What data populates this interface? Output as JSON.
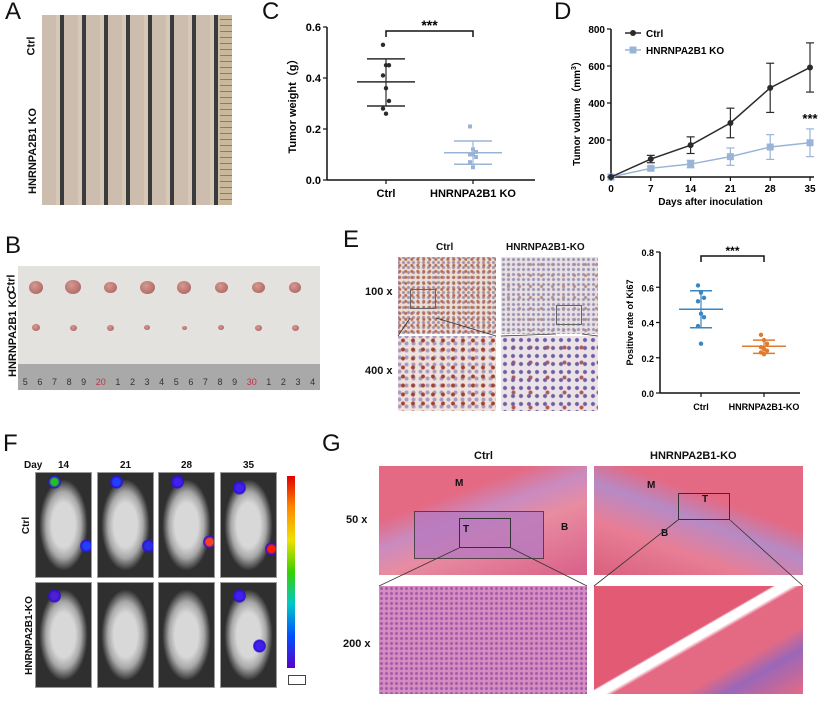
{
  "panels": {
    "A": {
      "letter": "A",
      "row_labels": [
        "Ctrl",
        "HNRNPA2B1 KO"
      ]
    },
    "B": {
      "letter": "B",
      "row_labels": [
        "Ctrl",
        "HNRNPA2B1 KO"
      ],
      "ruler_ticks": [
        "5",
        "6",
        "7",
        "8",
        "9",
        "20",
        "1",
        "2",
        "3",
        "4",
        "5",
        "6",
        "7",
        "8",
        "9",
        "30",
        "1",
        "2",
        "3",
        "4"
      ]
    },
    "C": {
      "letter": "C"
    },
    "D": {
      "letter": "D"
    },
    "E": {
      "letter": "E",
      "col_labels": [
        "Ctrl",
        "HNRNPA2B1-KO"
      ],
      "row_labels": [
        "100 x",
        "400 x"
      ]
    },
    "F": {
      "letter": "F",
      "day_label": "Day",
      "days": [
        "14",
        "21",
        "28",
        "35"
      ],
      "row_labels": [
        "Ctrl",
        "HNRNPA2B1-KO"
      ]
    },
    "G": {
      "letter": "G",
      "col_labels": [
        "Ctrl",
        "HNRNPA2B1-KO"
      ],
      "row_labels": [
        "50 x",
        "200 x"
      ],
      "region_labels": [
        "M",
        "T",
        "B",
        "M",
        "T",
        "B"
      ]
    }
  },
  "colors": {
    "ctrl_dark": "#2b2b2b",
    "ko_light_blue": "#9ab4d8",
    "ki67_ctrl_blue": "#3a86c2",
    "ki67_ko_orange": "#e07a2e"
  },
  "chart_data": [
    {
      "id": "C",
      "type": "scatter",
      "ylabel": "Tumor weight（g）",
      "ylim": [
        0,
        0.6
      ],
      "yticks": [
        "0.0",
        "0.2",
        "0.4",
        "0.6"
      ],
      "categories": [
        "Ctrl",
        "HNRNPA2B1 KO"
      ],
      "series": [
        {
          "values": [
            0.53,
            0.45,
            0.45,
            0.41,
            0.36,
            0.31,
            0.28,
            0.26
          ],
          "mean": 0.385,
          "sd_upper": 0.475,
          "sd_lower": 0.29,
          "color": "#2b2b2b"
        },
        {
          "values": [
            0.21,
            0.12,
            0.11,
            0.1,
            0.1,
            0.09,
            0.07,
            0.05
          ],
          "mean": 0.107,
          "sd_upper": 0.153,
          "sd_lower": 0.062,
          "color": "#9ab4d8"
        }
      ],
      "significance": "***"
    },
    {
      "id": "D",
      "type": "line",
      "xlabel": "Days after inoculation",
      "ylabel": "Tumor volume（mm",
      "ylabel_sup": "3",
      "ylabel_close": "）",
      "x": [
        0,
        7,
        14,
        21,
        28,
        35
      ],
      "xticks": [
        "0",
        "7",
        "14",
        "21",
        "28",
        "35"
      ],
      "ylim": [
        0,
        800
      ],
      "yticks": [
        "0",
        "200",
        "400",
        "600",
        "800"
      ],
      "legend_position": "top-left",
      "series": [
        {
          "name": "Ctrl",
          "values": [
            0,
            97,
            172,
            292,
            482,
            592
          ],
          "error": [
            0,
            20,
            45,
            80,
            133,
            133
          ],
          "color": "#2b2b2b",
          "marker": "circle"
        },
        {
          "name": "HNRNPA2B1 KO",
          "values": [
            0,
            47,
            70,
            110,
            162,
            185
          ],
          "error": [
            0,
            10,
            20,
            47,
            67,
            75
          ],
          "color": "#9ab4d8",
          "marker": "square"
        }
      ],
      "significance": "***"
    },
    {
      "id": "E",
      "type": "scatter",
      "ylabel": "Positive rate of Ki67",
      "ylim": [
        0,
        0.8
      ],
      "yticks": [
        "0.0",
        "0.2",
        "0.4",
        "0.6",
        "0.8"
      ],
      "categories": [
        "Ctrl",
        "HNRNPA2B1-KO"
      ],
      "series": [
        {
          "values": [
            0.61,
            0.57,
            0.54,
            0.52,
            0.45,
            0.43,
            0.38,
            0.28
          ],
          "mean": 0.475,
          "sd_upper": 0.58,
          "sd_lower": 0.37,
          "color": "#3a86c2"
        },
        {
          "values": [
            0.33,
            0.3,
            0.28,
            0.26,
            0.25,
            0.24,
            0.23,
            0.22
          ],
          "mean": 0.265,
          "sd_upper": 0.3,
          "sd_lower": 0.225,
          "color": "#e07a2e"
        }
      ],
      "significance": "***"
    }
  ]
}
